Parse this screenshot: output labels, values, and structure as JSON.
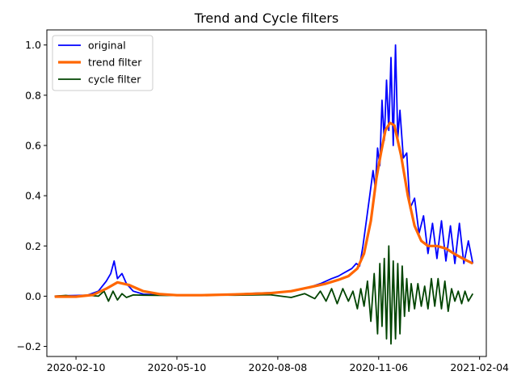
{
  "chart_data": {
    "type": "line",
    "title": "Trend and Cycle filters",
    "xlabel": "",
    "ylabel": "",
    "x_type": "date",
    "xlim": [
      "2020-01-15",
      "2021-02-10"
    ],
    "ylim": [
      -0.24,
      1.06
    ],
    "x_ticks": [
      "2020-02-10",
      "2020-05-10",
      "2020-08-08",
      "2020-11-06",
      "2021-02-04"
    ],
    "y_ticks": [
      -0.2,
      0.0,
      0.2,
      0.4,
      0.6,
      0.8,
      1.0
    ],
    "y_tick_labels": [
      "−0.2",
      "0.0",
      "0.2",
      "0.4",
      "0.6",
      "0.8",
      "1.0"
    ],
    "grid": false,
    "legend": "upper-left",
    "series": [
      {
        "name": "original",
        "color": "#0000ff",
        "x": [
          "2020-01-22",
          "2020-02-01",
          "2020-02-10",
          "2020-02-20",
          "2020-03-01",
          "2020-03-08",
          "2020-03-12",
          "2020-03-15",
          "2020-03-18",
          "2020-03-22",
          "2020-03-26",
          "2020-04-01",
          "2020-04-10",
          "2020-04-20",
          "2020-05-01",
          "2020-05-20",
          "2020-06-10",
          "2020-07-01",
          "2020-07-20",
          "2020-08-08",
          "2020-08-20",
          "2020-09-01",
          "2020-09-15",
          "2020-09-25",
          "2020-10-01",
          "2020-10-05",
          "2020-10-09",
          "2020-10-13",
          "2020-10-17",
          "2020-10-20",
          "2020-10-23",
          "2020-10-26",
          "2020-10-29",
          "2020-11-01",
          "2020-11-03",
          "2020-11-05",
          "2020-11-07",
          "2020-11-09",
          "2020-11-11",
          "2020-11-13",
          "2020-11-15",
          "2020-11-17",
          "2020-11-19",
          "2020-11-21",
          "2020-11-23",
          "2020-11-25",
          "2020-11-28",
          "2020-12-01",
          "2020-12-04",
          "2020-12-08",
          "2020-12-12",
          "2020-12-16",
          "2020-12-20",
          "2020-12-24",
          "2020-12-28",
          "2021-01-01",
          "2021-01-05",
          "2021-01-09",
          "2021-01-13",
          "2021-01-17",
          "2021-01-21",
          "2021-01-25",
          "2021-01-29"
        ],
        "values": [
          0.0,
          0.002,
          0.003,
          0.004,
          0.02,
          0.06,
          0.09,
          0.14,
          0.07,
          0.09,
          0.05,
          0.02,
          0.008,
          0.006,
          0.005,
          0.004,
          0.005,
          0.008,
          0.012,
          0.015,
          0.02,
          0.03,
          0.05,
          0.07,
          0.08,
          0.09,
          0.1,
          0.11,
          0.13,
          0.12,
          0.2,
          0.3,
          0.4,
          0.5,
          0.43,
          0.59,
          0.52,
          0.78,
          0.62,
          0.86,
          0.66,
          0.95,
          0.6,
          1.0,
          0.63,
          0.74,
          0.55,
          0.57,
          0.35,
          0.39,
          0.25,
          0.32,
          0.17,
          0.29,
          0.15,
          0.3,
          0.14,
          0.28,
          0.13,
          0.29,
          0.13,
          0.22,
          0.13
        ]
      },
      {
        "name": "trend filter",
        "color": "#ff6600",
        "x": [
          "2020-01-22",
          "2020-02-10",
          "2020-02-25",
          "2020-03-08",
          "2020-03-18",
          "2020-03-28",
          "2020-04-10",
          "2020-04-25",
          "2020-05-10",
          "2020-06-01",
          "2020-07-01",
          "2020-08-01",
          "2020-08-20",
          "2020-09-05",
          "2020-09-20",
          "2020-10-01",
          "2020-10-10",
          "2020-10-18",
          "2020-10-24",
          "2020-10-30",
          "2020-11-04",
          "2020-11-08",
          "2020-11-12",
          "2020-11-16",
          "2020-11-20",
          "2020-11-26",
          "2020-12-02",
          "2020-12-08",
          "2020-12-14",
          "2020-12-20",
          "2020-12-28",
          "2021-01-05",
          "2021-01-12",
          "2021-01-20",
          "2021-01-29"
        ],
        "values": [
          -0.002,
          -0.002,
          0.005,
          0.03,
          0.055,
          0.045,
          0.02,
          0.008,
          0.004,
          0.004,
          0.007,
          0.012,
          0.02,
          0.035,
          0.05,
          0.065,
          0.08,
          0.11,
          0.17,
          0.3,
          0.47,
          0.57,
          0.66,
          0.69,
          0.68,
          0.56,
          0.4,
          0.28,
          0.22,
          0.2,
          0.2,
          0.19,
          0.17,
          0.15,
          0.13
        ]
      },
      {
        "name": "cycle filter",
        "color": "#004400",
        "x": [
          "2020-01-22",
          "2020-02-01",
          "2020-02-10",
          "2020-02-20",
          "2020-03-01",
          "2020-03-06",
          "2020-03-10",
          "2020-03-14",
          "2020-03-18",
          "2020-03-22",
          "2020-03-26",
          "2020-04-01",
          "2020-04-10",
          "2020-05-01",
          "2020-06-01",
          "2020-07-01",
          "2020-08-01",
          "2020-08-20",
          "2020-09-01",
          "2020-09-10",
          "2020-09-15",
          "2020-09-20",
          "2020-09-25",
          "2020-09-30",
          "2020-10-05",
          "2020-10-10",
          "2020-10-14",
          "2020-10-18",
          "2020-10-21",
          "2020-10-24",
          "2020-10-27",
          "2020-10-30",
          "2020-11-02",
          "2020-11-05",
          "2020-11-07",
          "2020-11-09",
          "2020-11-11",
          "2020-11-13",
          "2020-11-15",
          "2020-11-17",
          "2020-11-19",
          "2020-11-21",
          "2020-11-23",
          "2020-11-25",
          "2020-11-27",
          "2020-11-29",
          "2020-12-01",
          "2020-12-03",
          "2020-12-05",
          "2020-12-08",
          "2020-12-11",
          "2020-12-14",
          "2020-12-17",
          "2020-12-20",
          "2020-12-23",
          "2020-12-26",
          "2020-12-29",
          "2021-01-01",
          "2021-01-04",
          "2021-01-07",
          "2021-01-10",
          "2021-01-13",
          "2021-01-16",
          "2021-01-19",
          "2021-01-22",
          "2021-01-25",
          "2021-01-29"
        ],
        "values": [
          0.0,
          0.003,
          -0.003,
          0.004,
          0.0,
          0.02,
          -0.02,
          0.02,
          -0.015,
          0.01,
          -0.005,
          0.005,
          0.004,
          0.003,
          0.005,
          0.004,
          0.006,
          -0.005,
          0.01,
          -0.01,
          0.02,
          -0.02,
          0.03,
          -0.03,
          0.03,
          -0.02,
          0.02,
          -0.05,
          0.03,
          -0.04,
          0.06,
          -0.1,
          0.09,
          -0.15,
          0.13,
          -0.12,
          0.15,
          -0.17,
          0.2,
          -0.19,
          0.14,
          -0.17,
          0.13,
          -0.15,
          0.12,
          -0.08,
          0.07,
          -0.06,
          0.05,
          -0.05,
          0.05,
          -0.04,
          0.04,
          -0.05,
          0.07,
          -0.04,
          0.07,
          -0.05,
          0.06,
          -0.06,
          0.03,
          -0.02,
          0.02,
          -0.03,
          0.02,
          -0.02,
          0.01
        ]
      }
    ]
  }
}
